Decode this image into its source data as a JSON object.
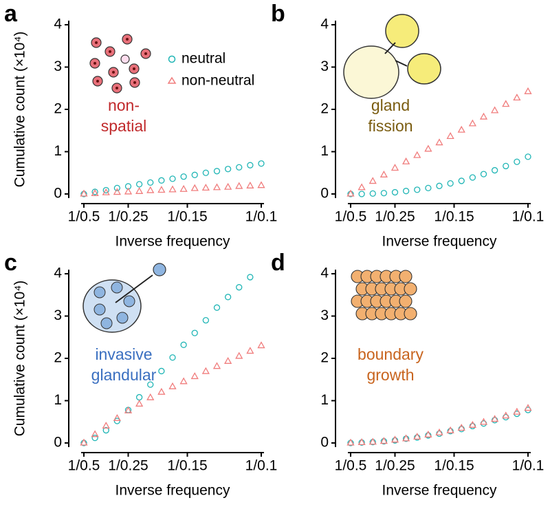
{
  "chart_data": [
    {
      "type": "scatter",
      "panel": "a",
      "xlabel": "Inverse frequency",
      "ylabel": "Cumulative count (×10⁴)",
      "annotation": [
        "non-",
        "spatial"
      ],
      "annotation_color": "#c0292b",
      "legend": "upper right",
      "x": [
        2,
        2.5,
        3,
        3.5,
        4,
        4.5,
        5,
        5.5,
        6,
        6.5,
        7,
        7.5,
        8,
        8.5,
        9,
        9.5,
        10
      ],
      "series": [
        {
          "name": "neutral",
          "color": "#1fb5b5",
          "values": [
            0,
            0.05,
            0.09,
            0.14,
            0.18,
            0.23,
            0.27,
            0.32,
            0.36,
            0.41,
            0.45,
            0.5,
            0.54,
            0.59,
            0.63,
            0.68,
            0.72
          ]
        },
        {
          "name": "non-neutral",
          "color": "#f07c7c",
          "values": [
            0,
            0.01,
            0.03,
            0.04,
            0.05,
            0.06,
            0.08,
            0.09,
            0.1,
            0.11,
            0.13,
            0.14,
            0.15,
            0.16,
            0.18,
            0.19,
            0.2
          ]
        }
      ],
      "xlim": [
        2,
        10
      ],
      "xticks": [
        {
          "value": 2,
          "label": "1/0.5"
        },
        {
          "value": 4,
          "label": "1/0.25"
        },
        {
          "value": 6.667,
          "label": "1/0.15"
        },
        {
          "value": 10,
          "label": "1/0.1"
        }
      ],
      "ylim": [
        0,
        4
      ],
      "yticks": [
        0,
        1,
        2,
        3,
        4
      ]
    },
    {
      "type": "scatter",
      "panel": "b",
      "xlabel": "Inverse frequency",
      "annotation": [
        "gland",
        "fission"
      ],
      "annotation_color": "#7a5c10",
      "x": [
        2,
        2.5,
        3,
        3.5,
        4,
        4.5,
        5,
        5.5,
        6,
        6.5,
        7,
        7.5,
        8,
        8.5,
        9,
        9.5,
        10
      ],
      "series": [
        {
          "name": "neutral",
          "color": "#1fb5b5",
          "values": [
            0,
            0,
            0.01,
            0.02,
            0.04,
            0.07,
            0.1,
            0.14,
            0.19,
            0.25,
            0.31,
            0.39,
            0.47,
            0.56,
            0.66,
            0.76,
            0.88
          ]
        },
        {
          "name": "non-neutral",
          "color": "#f07c7c",
          "values": [
            0,
            0.15,
            0.3,
            0.45,
            0.61,
            0.76,
            0.91,
            1.06,
            1.21,
            1.36,
            1.51,
            1.66,
            1.82,
            1.97,
            2.12,
            2.27,
            2.42
          ]
        }
      ],
      "xlim": [
        2,
        10
      ],
      "xticks": [
        {
          "value": 2,
          "label": "1/0.5"
        },
        {
          "value": 4,
          "label": "1/0.25"
        },
        {
          "value": 6.667,
          "label": "1/0.15"
        },
        {
          "value": 10,
          "label": "1/0.1"
        }
      ],
      "ylim": [
        0,
        4
      ],
      "yticks": [
        0,
        1,
        2,
        3,
        4
      ]
    },
    {
      "type": "scatter",
      "panel": "c",
      "xlabel": "Inverse frequency",
      "ylabel": "Cumulative count (×10⁴)",
      "annotation": [
        "invasive",
        "glandular"
      ],
      "annotation_color": "#3a6fc0",
      "x": [
        2,
        2.5,
        3,
        3.5,
        4,
        4.5,
        5,
        5.5,
        6,
        6.5,
        7,
        7.5,
        8,
        8.5,
        9,
        9.5,
        10
      ],
      "series": [
        {
          "name": "neutral",
          "color": "#1fb5b5",
          "values": [
            0,
            0.12,
            0.3,
            0.52,
            0.78,
            1.08,
            1.38,
            1.7,
            2.02,
            2.32,
            2.6,
            2.9,
            3.2,
            3.45,
            3.68,
            3.92,
            null
          ]
        },
        {
          "name": "non-neutral",
          "color": "#f07c7c",
          "values": [
            0,
            0.2,
            0.4,
            0.58,
            0.76,
            0.92,
            1.07,
            1.2,
            1.33,
            1.45,
            1.57,
            1.69,
            1.81,
            1.93,
            2.05,
            2.17,
            2.3
          ]
        }
      ],
      "xlim": [
        2,
        10
      ],
      "xticks": [
        {
          "value": 2,
          "label": "1/0.5"
        },
        {
          "value": 4,
          "label": "1/0.25"
        },
        {
          "value": 6.667,
          "label": "1/0.15"
        },
        {
          "value": 10,
          "label": "1/0.1"
        }
      ],
      "ylim": [
        0,
        4
      ],
      "yticks": [
        0,
        1,
        2,
        3,
        4
      ]
    },
    {
      "type": "scatter",
      "panel": "d",
      "xlabel": "Inverse frequency",
      "annotation": [
        "boundary",
        "growth"
      ],
      "annotation_color": "#c8641e",
      "x": [
        2,
        2.5,
        3,
        3.5,
        4,
        4.5,
        5,
        5.5,
        6,
        6.5,
        7,
        7.5,
        8,
        8.5,
        9,
        9.5,
        10
      ],
      "series": [
        {
          "name": "neutral",
          "color": "#1fb5b5",
          "values": [
            0,
            0.01,
            0.02,
            0.04,
            0.06,
            0.1,
            0.13,
            0.18,
            0.22,
            0.28,
            0.33,
            0.4,
            0.46,
            0.54,
            0.61,
            0.69,
            0.78
          ]
        },
        {
          "name": "non-neutral",
          "color": "#f07c7c",
          "values": [
            0,
            0.01,
            0.02,
            0.04,
            0.07,
            0.1,
            0.14,
            0.19,
            0.24,
            0.29,
            0.35,
            0.42,
            0.49,
            0.56,
            0.64,
            0.73,
            0.82
          ]
        }
      ],
      "xlim": [
        2,
        10
      ],
      "xticks": [
        {
          "value": 2,
          "label": "1/0.5"
        },
        {
          "value": 4,
          "label": "1/0.25"
        },
        {
          "value": 6.667,
          "label": "1/0.15"
        },
        {
          "value": 10,
          "label": "1/0.1"
        }
      ],
      "ylim": [
        0,
        4
      ],
      "yticks": [
        0,
        1,
        2,
        3,
        4
      ]
    }
  ]
}
